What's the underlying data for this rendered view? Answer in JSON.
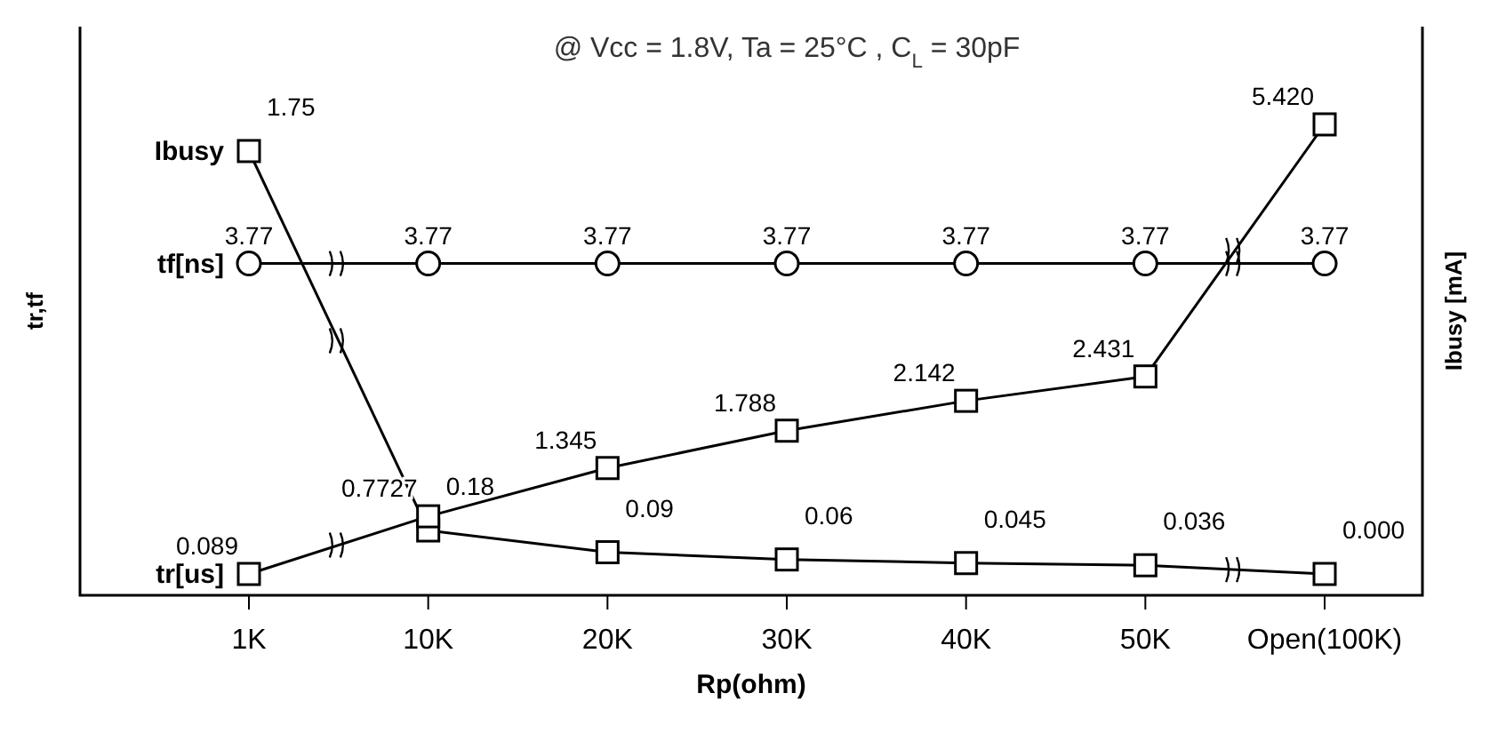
{
  "chart_data": {
    "type": "line",
    "title": "@ Vcc = 1.8V,  Ta = 25°C , C$_{L}$ = 30pF",
    "xlabel": "Rp(ohm)",
    "ylabel": "tr,tf",
    "y2label": "Ibusy [mA]",
    "categories": [
      "1K",
      "10K",
      "20K",
      "30K",
      "40K",
      "50K",
      "Open(100K)"
    ],
    "tick_labels": "x",
    "series": [
      {
        "name": "Ibusy",
        "color": "#000000",
        "axis": "y2",
        "marker": "square",
        "values": [
          1.75,
          0.18,
          0.09,
          0.06,
          0.045,
          0.036,
          0.0
        ],
        "value_labels": [
          "1.75",
          "0.18",
          "0.09",
          "0.06",
          "0.045",
          "0.036",
          "0.000"
        ]
      },
      {
        "name": "tr[us]",
        "color": "#000000",
        "marker": "square",
        "values": [
          0.089,
          0.7727,
          1.345,
          1.788,
          2.142,
          2.431,
          5.42
        ],
        "value_labels": [
          "0.089",
          "0.7727",
          "1.345",
          "1.788",
          "2.142",
          "2.431",
          "5.420"
        ]
      },
      {
        "name": "tf[ns]",
        "color": "#000000",
        "marker": "circle",
        "values": [
          3.77,
          3.77,
          3.77,
          3.77,
          3.77,
          3.77,
          3.77
        ],
        "value_labels": [
          "3.77",
          "3.77",
          "3.77",
          "3.77",
          "3.77",
          "3.77",
          "3.77"
        ]
      }
    ]
  }
}
